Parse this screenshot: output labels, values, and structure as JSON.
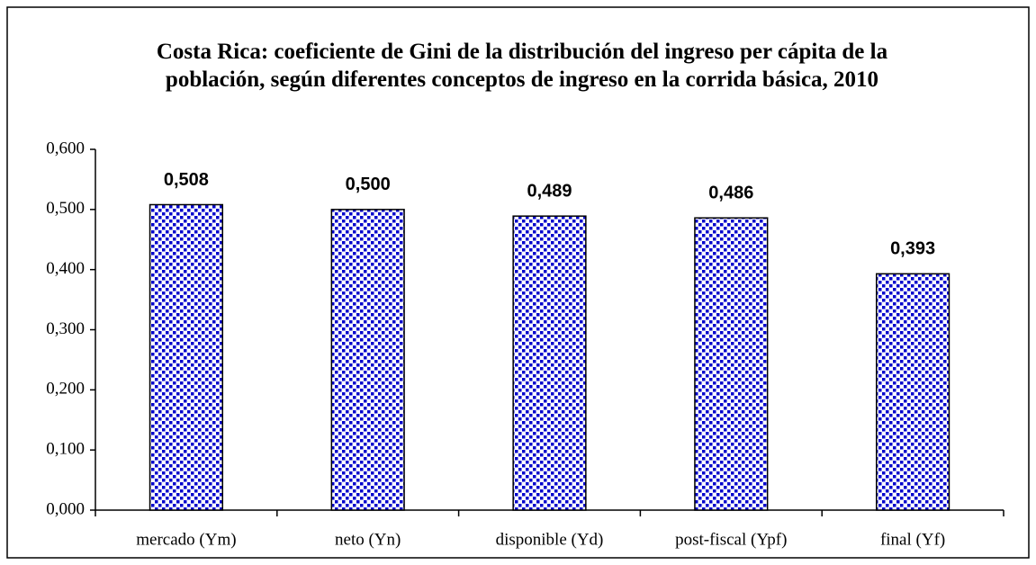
{
  "chart_data": {
    "type": "bar",
    "title": "Costa Rica: coeficiente de Gini de la distribución del ingreso per cápita de la población, según diferentes conceptos de ingreso en la corrida básica, 2010",
    "categories": [
      "mercado (Ym)",
      "neto (Yn)",
      "disponible (Yd)",
      "post-fiscal (Ypf)",
      "final (Yf)"
    ],
    "values": [
      0.508,
      0.5,
      0.489,
      0.486,
      0.393
    ],
    "value_labels": [
      "0,508",
      "0,500",
      "0,489",
      "0,486",
      "0,393"
    ],
    "color": "#0000cc",
    "ylim": [
      0,
      0.6
    ],
    "yticks": [
      {
        "value": 0,
        "label": "0,000"
      },
      {
        "value": 0.1,
        "label": "0,100"
      },
      {
        "value": 0.2,
        "label": "0,200"
      },
      {
        "value": 0.3,
        "label": "0,300"
      },
      {
        "value": 0.4,
        "label": "0,400"
      },
      {
        "value": 0.5,
        "label": "0,500"
      },
      {
        "value": 0.6,
        "label": "0,600"
      }
    ],
    "grid": false
  }
}
